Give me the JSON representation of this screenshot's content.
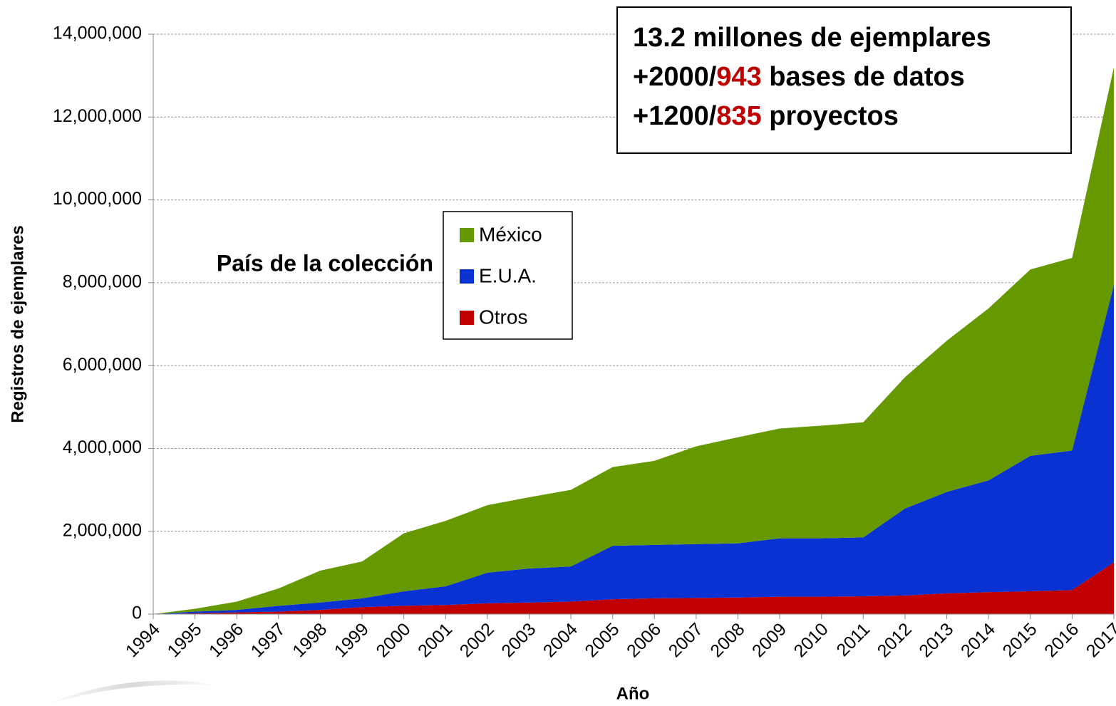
{
  "chart_data": {
    "type": "stacked_area",
    "y_label": "Registros de ejemplares",
    "x_label": "Año",
    "legend_title": "País de la colección",
    "annotation": [
      [
        "13.2 millones de ejemplares"
      ],
      [
        "+2000/",
        "943",
        " bases de datos"
      ],
      [
        "+1200/",
        "835",
        " proyectos"
      ]
    ],
    "categories": [
      "1994",
      "1995",
      "1996",
      "1997",
      "1998",
      "1999",
      "2000",
      "2001",
      "2002",
      "2003",
      "2004",
      "2005",
      "2006",
      "2007",
      "2008",
      "2009",
      "2010",
      "2011",
      "2012",
      "2013",
      "2014",
      "2015",
      "2016",
      "2017"
    ],
    "series": [
      {
        "name": "México",
        "color": "#669900",
        "values": [
          0,
          70000,
          200000,
          420000,
          770000,
          890000,
          1400000,
          1580000,
          1630000,
          1720000,
          1850000,
          1900000,
          2030000,
          2360000,
          2560000,
          2650000,
          2720000,
          2780000,
          3170000,
          3650000,
          4150000,
          4500000,
          4650000,
          5250000
        ]
      },
      {
        "name": "E.U.A.",
        "color": "#0a32d2",
        "values": [
          0,
          40000,
          60000,
          140000,
          180000,
          210000,
          350000,
          450000,
          740000,
          820000,
          850000,
          1290000,
          1290000,
          1300000,
          1310000,
          1410000,
          1410000,
          1420000,
          2100000,
          2450000,
          2700000,
          3270000,
          3370000,
          6700000
        ]
      },
      {
        "name": "Otros",
        "color": "#c00000",
        "values": [
          0,
          20000,
          40000,
          60000,
          100000,
          170000,
          200000,
          220000,
          260000,
          280000,
          300000,
          360000,
          380000,
          390000,
          400000,
          420000,
          420000,
          430000,
          450000,
          500000,
          530000,
          550000,
          580000,
          1250000
        ]
      }
    ],
    "ylim": [
      0,
      14000000
    ],
    "yticks": [
      0,
      {
        "value": 2000000,
        "label": "2,000,000"
      },
      {
        "value": 4000000,
        "label": "4,000,000"
      },
      {
        "value": 6000000,
        "label": "6,000,000"
      },
      {
        "value": 8000000,
        "label": "8,000,000"
      },
      {
        "value": 10000000,
        "label": "10,000,000"
      },
      {
        "value": 12000000,
        "label": "12,000,000"
      },
      {
        "value": 14000000,
        "label": "14,000,000"
      }
    ],
    "grid": true
  }
}
